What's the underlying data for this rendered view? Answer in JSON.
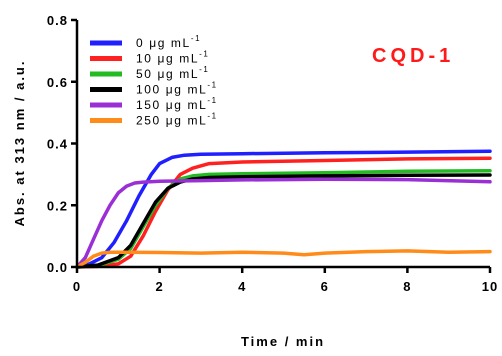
{
  "chart_data": {
    "type": "line",
    "title": "",
    "annotation": {
      "text": "CQD-1",
      "color": "#ff1a1a"
    },
    "xlabel": "Time / min",
    "ylabel": "Abs. at 313 nm / a.u.",
    "xlim": [
      0,
      10
    ],
    "ylim": [
      0,
      0.8
    ],
    "xticks": [
      "0",
      "2",
      "4",
      "6",
      "8",
      "10"
    ],
    "yticks": [
      "0.0",
      "0.2",
      "0.4",
      "0.6",
      "0.8"
    ],
    "grid": false,
    "legend": {
      "position": "top-left",
      "unit": "μg mL",
      "sup": "-1"
    },
    "series": [
      {
        "name": "0",
        "color": "#1f1fff",
        "x": [
          0,
          0.3,
          0.6,
          0.9,
          1.2,
          1.5,
          1.8,
          2.0,
          2.3,
          2.6,
          3.0,
          4.0,
          6.0,
          8.0,
          10.0
        ],
        "y": [
          0.0,
          0.01,
          0.03,
          0.08,
          0.15,
          0.23,
          0.3,
          0.335,
          0.355,
          0.362,
          0.365,
          0.367,
          0.37,
          0.372,
          0.375
        ]
      },
      {
        "name": "10",
        "color": "#ff2020",
        "x": [
          0,
          0.5,
          1.0,
          1.3,
          1.6,
          1.9,
          2.2,
          2.5,
          2.8,
          3.2,
          4.0,
          6.0,
          8.0,
          10.0
        ],
        "y": [
          0.0,
          0.002,
          0.01,
          0.035,
          0.1,
          0.18,
          0.25,
          0.3,
          0.32,
          0.335,
          0.34,
          0.345,
          0.35,
          0.352
        ]
      },
      {
        "name": "50",
        "color": "#22bb22",
        "x": [
          0,
          0.5,
          1.0,
          1.3,
          1.6,
          1.9,
          2.2,
          2.5,
          2.8,
          3.2,
          4.0,
          6.0,
          8.0,
          10.0
        ],
        "y": [
          0.0,
          0.005,
          0.025,
          0.06,
          0.13,
          0.2,
          0.255,
          0.285,
          0.295,
          0.3,
          0.302,
          0.305,
          0.31,
          0.312
        ]
      },
      {
        "name": "100",
        "color": "#000000",
        "x": [
          0,
          0.5,
          1.0,
          1.3,
          1.6,
          1.9,
          2.2,
          2.5,
          2.8,
          3.2,
          4.0,
          6.0,
          8.0,
          10.0
        ],
        "y": [
          0.0,
          0.006,
          0.03,
          0.07,
          0.14,
          0.21,
          0.255,
          0.275,
          0.285,
          0.29,
          0.292,
          0.295,
          0.297,
          0.298
        ]
      },
      {
        "name": "150",
        "color": "#9a2fd6",
        "x": [
          0,
          0.2,
          0.4,
          0.6,
          0.8,
          1.0,
          1.2,
          1.4,
          1.6,
          2.0,
          3.0,
          4.0,
          6.0,
          8.0,
          10.0
        ],
        "y": [
          0.0,
          0.03,
          0.09,
          0.15,
          0.2,
          0.24,
          0.262,
          0.272,
          0.275,
          0.278,
          0.28,
          0.282,
          0.284,
          0.283,
          0.276
        ]
      },
      {
        "name": "250",
        "color": "#ff8c1a",
        "x": [
          0,
          0.2,
          0.4,
          0.6,
          0.8,
          1.0,
          2.0,
          3.0,
          4.0,
          5.0,
          5.5,
          6.0,
          7.0,
          8.0,
          9.0,
          10.0
        ],
        "y": [
          0.0,
          0.015,
          0.035,
          0.045,
          0.048,
          0.048,
          0.047,
          0.045,
          0.048,
          0.045,
          0.04,
          0.045,
          0.05,
          0.052,
          0.048,
          0.05
        ]
      }
    ]
  }
}
